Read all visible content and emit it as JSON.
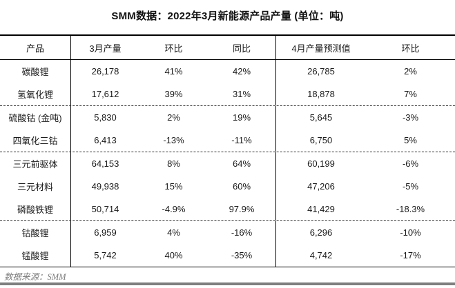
{
  "page": {
    "title": "SMM数据：2022年3月新能源产品产量 (单位：吨)"
  },
  "chart_data": {
    "type": "table",
    "title": "SMM数据：2022年3月新能源产品产量 (单位：吨)",
    "unit": "吨",
    "columns": [
      "产品",
      "3月产量",
      "环比",
      "同比",
      "4月产量预测值",
      "环比"
    ],
    "rows": [
      [
        "碳酸锂",
        "26,178",
        "41%",
        "42%",
        "26,785",
        "2%"
      ],
      [
        "氢氧化锂",
        "17,612",
        "39%",
        "31%",
        "18,878",
        "7%"
      ],
      [
        "硫酸钴 (金吨)",
        "5,830",
        "2%",
        "19%",
        "5,645",
        "-3%"
      ],
      [
        "四氧化三钴",
        "6,413",
        "-13%",
        "-11%",
        "6,750",
        "5%"
      ],
      [
        "三元前驱体",
        "64,153",
        "8%",
        "64%",
        "60,199",
        "-6%"
      ],
      [
        "三元材料",
        "49,938",
        "15%",
        "60%",
        "47,206",
        "-5%"
      ],
      [
        "磷酸铁锂",
        "50,714",
        "-4.9%",
        "97.9%",
        "41,429",
        "-18.3%"
      ],
      [
        "钴酸锂",
        "6,959",
        "4%",
        "-16%",
        "6,296",
        "-10%"
      ],
      [
        "锰酸锂",
        "5,742",
        "40%",
        "-35%",
        "4,742",
        "-17%"
      ]
    ],
    "group_separators_after_data_rows": [
      2,
      4,
      7
    ],
    "source_note": "数据来源：SMM"
  },
  "footer": {
    "source_note": "数据来源：SMM"
  },
  "colors": {
    "text": "#1a1a1a",
    "line": "#000000",
    "muted": "#7f7f7f"
  }
}
